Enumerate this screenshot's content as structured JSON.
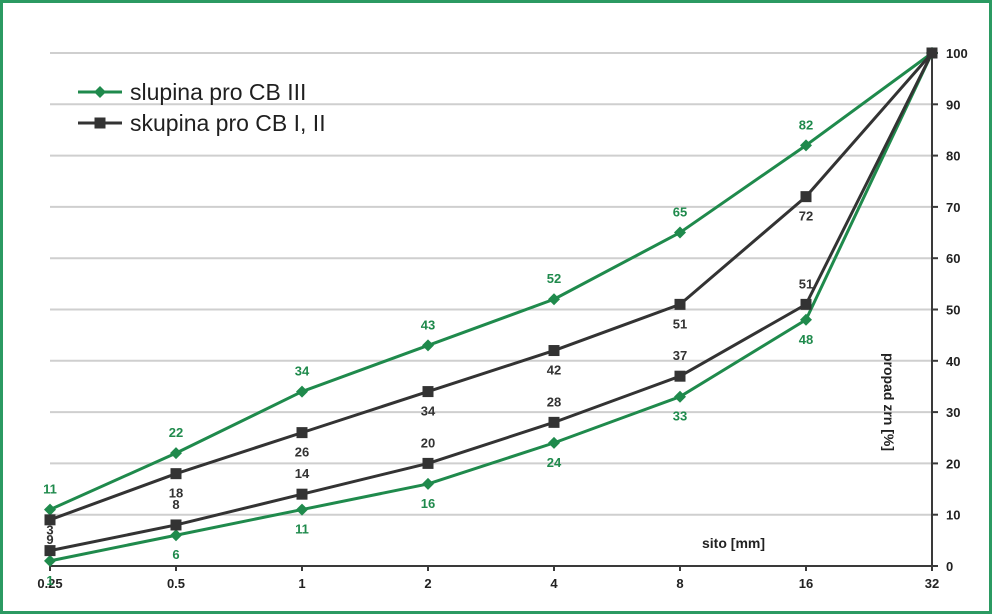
{
  "chart_data": {
    "type": "line",
    "x": [
      "0.25",
      "0.5",
      "1",
      "2",
      "4",
      "8",
      "16",
      "32"
    ],
    "xlabel": "sito [mm]",
    "ylabel": "propad zrn [%]",
    "ylim": [
      0,
      100
    ],
    "yticks": [
      0,
      10,
      20,
      30,
      40,
      50,
      60,
      70,
      80,
      90,
      100
    ],
    "grid": true,
    "legend_position": "top-left",
    "legend": [
      {
        "label": "slupina pro CB III",
        "color": "#1f8a4c",
        "marker": "diamond"
      },
      {
        "label": "skupina pro CB I, II",
        "color": "#333333",
        "marker": "square"
      }
    ],
    "series": [
      {
        "group": "slupina pro CB III",
        "color": "#1f8a4c",
        "marker": "diamond",
        "values": [
          11,
          22,
          34,
          43,
          52,
          65,
          82,
          100
        ],
        "labels": [
          "11",
          "22",
          "34",
          "43",
          "52",
          "65",
          "82",
          ""
        ],
        "label_pos": "above"
      },
      {
        "group": "slupina pro CB III",
        "color": "#1f8a4c",
        "marker": "diamond",
        "values": [
          1,
          6,
          11,
          16,
          24,
          33,
          48,
          100
        ],
        "labels": [
          "1",
          "6",
          "11",
          "16",
          "24",
          "33",
          "48",
          ""
        ],
        "label_pos": "below"
      },
      {
        "group": "skupina pro CB I, II",
        "color": "#333333",
        "marker": "square",
        "values": [
          9,
          18,
          26,
          34,
          42,
          51,
          72,
          100
        ],
        "labels": [
          "9",
          "18",
          "26",
          "34",
          "42",
          "51",
          "72",
          ""
        ],
        "label_pos": "below"
      },
      {
        "group": "skupina pro CB I, II",
        "color": "#333333",
        "marker": "square",
        "values": [
          3,
          8,
          14,
          20,
          28,
          37,
          51,
          100
        ],
        "labels": [
          "3",
          "8",
          "14",
          "20",
          "28",
          "37",
          "51",
          ""
        ],
        "label_pos": "above"
      }
    ]
  },
  "colors": {
    "frame": "#2b9a62",
    "green": "#1f8a4c",
    "dark": "#333333",
    "grid": "#cfcfcf"
  }
}
